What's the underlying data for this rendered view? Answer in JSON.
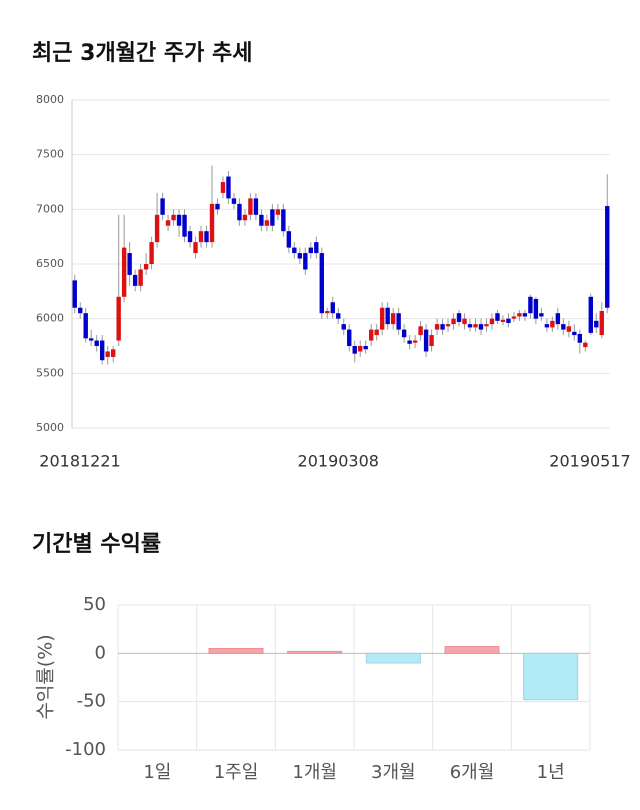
{
  "chart_data": [
    {
      "type": "candlestick",
      "title": "최근 3개월간 주가 추세",
      "categories": [
        "20181221",
        null,
        null,
        null,
        null,
        null,
        null,
        null,
        null,
        null,
        null,
        null,
        null,
        null,
        null,
        null,
        null,
        null,
        null,
        null,
        null,
        null,
        null,
        null,
        null,
        null,
        null,
        null,
        null,
        null,
        null,
        null,
        null,
        null,
        null,
        null,
        null,
        null,
        null,
        null,
        null,
        null,
        null,
        null,
        null,
        null,
        null,
        null,
        "20190308",
        null,
        null,
        null,
        null,
        null,
        null,
        null,
        null,
        null,
        null,
        null,
        null,
        null,
        null,
        null,
        null,
        null,
        null,
        null,
        null,
        null,
        null,
        null,
        null,
        null,
        null,
        null,
        null,
        null,
        null,
        null,
        null,
        null,
        null,
        null,
        null,
        null,
        null,
        null,
        null,
        null,
        null,
        null,
        null,
        null,
        null,
        null,
        null,
        "20190517"
      ],
      "open": [
        6350,
        6100,
        6050,
        5820,
        5800,
        5800,
        5650,
        5650,
        5800,
        6200,
        6600,
        6400,
        6300,
        6450,
        6500,
        6700,
        7100,
        6850,
        6900,
        6950,
        6950,
        6800,
        6600,
        6700,
        6800,
        6700,
        7050,
        7150,
        7300,
        7100,
        7050,
        6900,
        6950,
        7100,
        6950,
        6850,
        7000,
        6950,
        7000,
        6800,
        6650,
        6600,
        6600,
        6650,
        6700,
        6600,
        6050,
        6150,
        6050,
        5950,
        5900,
        5750,
        5700,
        5750,
        5800,
        5850,
        5900,
        6100,
        5950,
        6050,
        5900,
        5800,
        5780,
        5850,
        5900,
        5750,
        5900,
        5950,
        5930,
        5950,
        6050,
        5950,
        5950,
        5920,
        5950,
        5930,
        5950,
        6050,
        5970,
        6000,
        6000,
        6020,
        6050,
        6200,
        6180,
        6050,
        5950,
        5920,
        6050,
        5950,
        5880,
        5880,
        5860,
        5740,
        6200,
        5980,
        5850,
        7030
      ],
      "high": [
        6400,
        6150,
        6100,
        5900,
        5850,
        5850,
        5750,
        5750,
        6950,
        6950,
        6700,
        6450,
        6500,
        6600,
        6750,
        7150,
        7150,
        6950,
        7000,
        7000,
        7000,
        6850,
        6750,
        6850,
        6850,
        7400,
        7100,
        7300,
        7350,
        7150,
        7100,
        7000,
        7150,
        7150,
        7000,
        6950,
        7050,
        7050,
        7050,
        6850,
        6700,
        6650,
        6650,
        6700,
        6750,
        6650,
        6100,
        6200,
        6100,
        6000,
        5950,
        5800,
        5800,
        5800,
        5950,
        5950,
        6150,
        6150,
        6100,
        6100,
        5950,
        5850,
        5850,
        5980,
        5950,
        5900,
        6000,
        6000,
        6000,
        6050,
        6080,
        6050,
        6000,
        6000,
        6000,
        6000,
        6050,
        6080,
        6030,
        6050,
        6060,
        6080,
        6080,
        6220,
        6200,
        6100,
        6000,
        6020,
        6100,
        6000,
        5980,
        5950,
        5900,
        5800,
        6230,
        6050,
        6150,
        7320
      ],
      "low": [
        6050,
        6000,
        5780,
        5750,
        5700,
        5580,
        5580,
        5600,
        5750,
        6150,
        6300,
        6250,
        6250,
        6400,
        6450,
        6650,
        6900,
        6800,
        6850,
        6750,
        6700,
        6650,
        6550,
        6650,
        6650,
        6650,
        6950,
        7100,
        7050,
        7000,
        6850,
        6850,
        6900,
        6900,
        6800,
        6800,
        6800,
        6900,
        6750,
        6600,
        6550,
        6500,
        6400,
        6550,
        6550,
        6000,
        6000,
        6000,
        5950,
        5850,
        5700,
        5600,
        5650,
        5680,
        5750,
        5800,
        5850,
        5900,
        5900,
        5850,
        5780,
        5720,
        5730,
        5800,
        5650,
        5700,
        5850,
        5850,
        5880,
        5900,
        5930,
        5900,
        5880,
        5880,
        5850,
        5880,
        5900,
        5950,
        5940,
        5920,
        5970,
        5980,
        5980,
        6000,
        5950,
        5980,
        5880,
        5880,
        5900,
        5850,
        5830,
        5800,
        5680,
        5700,
        5850,
        5870,
        5820,
        6050
      ],
      "close": [
        6100,
        6050,
        5820,
        5800,
        5750,
        5620,
        5700,
        5720,
        6200,
        6650,
        6400,
        6300,
        6450,
        6500,
        6700,
        6950,
        6950,
        6900,
        6950,
        6850,
        6750,
        6700,
        6700,
        6800,
        6700,
        7050,
        7000,
        7250,
        7100,
        7050,
        6900,
        6950,
        7100,
        6950,
        6850,
        6900,
        6850,
        7000,
        6800,
        6650,
        6600,
        6550,
        6450,
        6600,
        6600,
        6050,
        6070,
        6050,
        6000,
        5900,
        5750,
        5680,
        5750,
        5720,
        5900,
        5900,
        6100,
        5950,
        6050,
        5900,
        5830,
        5770,
        5800,
        5930,
        5700,
        5850,
        5950,
        5900,
        5950,
        6000,
        5970,
        6000,
        5920,
        5950,
        5900,
        5950,
        6000,
        5980,
        5990,
        5960,
        6020,
        6050,
        6020,
        6050,
        6000,
        6020,
        5920,
        5980,
        5950,
        5900,
        5930,
        5850,
        5780,
        5780,
        5870,
        5920,
        6070,
        6100
      ],
      "up_color": "#dd1111",
      "down_color": "#0000cc",
      "ylim": [
        5000,
        8000
      ],
      "yticks": [
        5000,
        5500,
        6000,
        6500,
        7000,
        7500,
        8000
      ],
      "grid": true
    },
    {
      "type": "bar",
      "title": "기간별 수익률",
      "y_label": "수익률(%)",
      "categories": [
        "1일",
        "1주일",
        "1개월",
        "3개월",
        "6개월",
        "1년"
      ],
      "values": [
        0,
        5,
        2,
        -10,
        7,
        -48
      ],
      "positive_color": "#f5a5aa",
      "negative_color": "#b2ebf5",
      "ylim": [
        -100,
        50
      ],
      "yticks": [
        50,
        0,
        -50,
        -100
      ],
      "grid": true
    }
  ]
}
